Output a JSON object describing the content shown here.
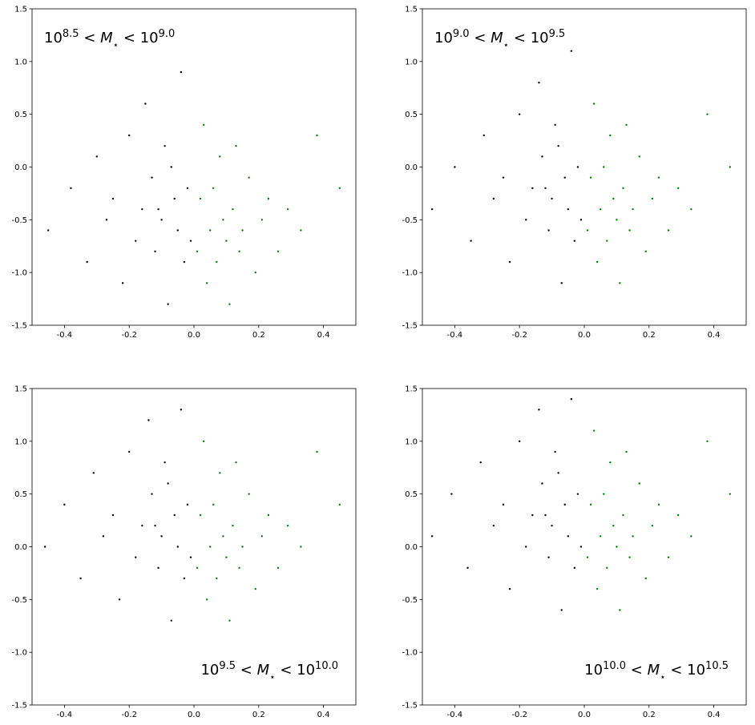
{
  "chart_data": [
    {
      "type": "scatter",
      "xlim": [
        -0.5,
        0.5
      ],
      "ylim": [
        -1.5,
        1.5
      ],
      "xticks": [
        -0.4,
        -0.2,
        {
          "value": 0,
          "label": "0.0"
        },
        0.2,
        0.4
      ],
      "yticks": [
        -1.5,
        {
          "value": -1,
          "label": "-1.0"
        },
        -0.5,
        {
          "value": 0,
          "label": "0.0"
        },
        0.5,
        {
          "value": 1,
          "label": "1.0"
        },
        1.5
      ],
      "annotation": [
        {
          "text": "10"
        },
        {
          "text": "8.5",
          "sup": true
        },
        {
          "text": " < "
        },
        {
          "text": "M",
          "italic": true
        },
        {
          "text": "⋆",
          "sub": true
        },
        {
          "text": " < "
        },
        {
          "text": "10"
        },
        {
          "text": "9.0",
          "sup": true
        }
      ],
      "annotation_position": "upper left",
      "series": [
        {
          "color": "black",
          "x": [
            -0.45,
            -0.38,
            -0.33,
            -0.3,
            -0.27,
            -0.25,
            -0.22,
            -0.2,
            -0.18,
            -0.16,
            -0.15,
            -0.13,
            -0.12,
            -0.1,
            -0.09,
            -0.08,
            -0.06,
            -0.05,
            -0.04,
            -0.03,
            -0.02,
            -0.01,
            -0.11,
            -0.07
          ],
          "values": [
            -0.6,
            -0.2,
            -0.9,
            0.1,
            -0.5,
            -0.3,
            -1.1,
            0.3,
            -0.7,
            -0.4,
            0.6,
            -0.1,
            -0.8,
            -0.5,
            0.2,
            -1.3,
            -0.3,
            -0.6,
            0.9,
            -0.9,
            -0.2,
            -0.7,
            -0.4,
            0.0
          ]
        },
        {
          "color": "green",
          "x": [
            0.01,
            0.02,
            0.03,
            0.04,
            0.05,
            0.06,
            0.07,
            0.08,
            0.09,
            0.1,
            0.11,
            0.12,
            0.13,
            0.14,
            0.15,
            0.17,
            0.19,
            0.21,
            0.23,
            0.26,
            0.29,
            0.33,
            0.38,
            0.45
          ],
          "values": [
            -0.8,
            -0.3,
            0.4,
            -1.1,
            -0.6,
            -0.2,
            -0.9,
            0.1,
            -0.5,
            -0.7,
            -1.3,
            -0.4,
            0.2,
            -0.8,
            -0.6,
            -0.1,
            -1.0,
            -0.5,
            -0.3,
            -0.8,
            -0.4,
            -0.6,
            0.3,
            -0.2
          ]
        }
      ]
    },
    {
      "type": "scatter",
      "xlim": [
        -0.5,
        0.5
      ],
      "ylim": [
        -1.5,
        1.5
      ],
      "xticks": [
        -0.4,
        -0.2,
        {
          "value": 0,
          "label": "0.0"
        },
        0.2,
        0.4
      ],
      "yticks": [
        -1.5,
        {
          "value": -1,
          "label": "-1.0"
        },
        -0.5,
        {
          "value": 0,
          "label": "0.0"
        },
        0.5,
        {
          "value": 1,
          "label": "1.0"
        },
        1.5
      ],
      "annotation": [
        {
          "text": "10"
        },
        {
          "text": "9.0",
          "sup": true
        },
        {
          "text": " < "
        },
        {
          "text": "M",
          "italic": true
        },
        {
          "text": "⋆",
          "sub": true
        },
        {
          "text": " < "
        },
        {
          "text": "10"
        },
        {
          "text": "9.5",
          "sup": true
        }
      ],
      "annotation_position": "upper left",
      "series": [
        {
          "color": "black",
          "x": [
            -0.47,
            -0.4,
            -0.35,
            -0.31,
            -0.28,
            -0.25,
            -0.23,
            -0.2,
            -0.18,
            -0.16,
            -0.14,
            -0.13,
            -0.11,
            -0.1,
            -0.09,
            -0.07,
            -0.06,
            -0.05,
            -0.04,
            -0.03,
            -0.02,
            -0.01,
            -0.12,
            -0.08
          ],
          "values": [
            -0.4,
            0.0,
            -0.7,
            0.3,
            -0.3,
            -0.1,
            -0.9,
            0.5,
            -0.5,
            -0.2,
            0.8,
            0.1,
            -0.6,
            -0.3,
            0.4,
            -1.1,
            -0.1,
            -0.4,
            1.1,
            -0.7,
            0.0,
            -0.5,
            -0.2,
            0.2
          ]
        },
        {
          "color": "green",
          "x": [
            0.01,
            0.02,
            0.03,
            0.04,
            0.05,
            0.06,
            0.07,
            0.08,
            0.09,
            0.1,
            0.11,
            0.12,
            0.13,
            0.14,
            0.15,
            0.17,
            0.19,
            0.21,
            0.23,
            0.26,
            0.29,
            0.33,
            0.38,
            0.45
          ],
          "values": [
            -0.6,
            -0.1,
            0.6,
            -0.9,
            -0.4,
            0.0,
            -0.7,
            0.3,
            -0.3,
            -0.5,
            -1.1,
            -0.2,
            0.4,
            -0.6,
            -0.4,
            0.1,
            -0.8,
            -0.3,
            -0.1,
            -0.6,
            -0.2,
            -0.4,
            0.5,
            0.0
          ]
        }
      ]
    },
    {
      "type": "scatter",
      "xlim": [
        -0.5,
        0.5
      ],
      "ylim": [
        -1.5,
        1.5
      ],
      "xticks": [
        -0.4,
        -0.2,
        {
          "value": 0,
          "label": "0.0"
        },
        0.2,
        0.4
      ],
      "yticks": [
        -1.5,
        {
          "value": -1,
          "label": "-1.0"
        },
        -0.5,
        {
          "value": 0,
          "label": "0.0"
        },
        0.5,
        {
          "value": 1,
          "label": "1.0"
        },
        1.5
      ],
      "annotation": [
        {
          "text": "10"
        },
        {
          "text": "9.5",
          "sup": true
        },
        {
          "text": " < "
        },
        {
          "text": "M",
          "italic": true
        },
        {
          "text": "⋆",
          "sub": true
        },
        {
          "text": " < "
        },
        {
          "text": "10"
        },
        {
          "text": "10.0",
          "sup": true
        }
      ],
      "annotation_position": "lower right",
      "series": [
        {
          "color": "black",
          "x": [
            -0.46,
            -0.4,
            -0.35,
            -0.31,
            -0.28,
            -0.25,
            -0.23,
            -0.2,
            -0.18,
            -0.16,
            -0.14,
            -0.13,
            -0.11,
            -0.1,
            -0.09,
            -0.07,
            -0.06,
            -0.05,
            -0.04,
            -0.03,
            -0.02,
            -0.01,
            -0.12,
            -0.08
          ],
          "values": [
            0.0,
            0.4,
            -0.3,
            0.7,
            0.1,
            0.3,
            -0.5,
            0.9,
            -0.1,
            0.2,
            1.2,
            0.5,
            -0.2,
            0.1,
            0.8,
            -0.7,
            0.3,
            0.0,
            1.3,
            -0.3,
            0.4,
            -0.1,
            0.2,
            0.6
          ]
        },
        {
          "color": "green",
          "x": [
            0.01,
            0.02,
            0.03,
            0.04,
            0.05,
            0.06,
            0.07,
            0.08,
            0.09,
            0.1,
            0.11,
            0.12,
            0.13,
            0.14,
            0.15,
            0.17,
            0.19,
            0.21,
            0.23,
            0.26,
            0.29,
            0.33,
            0.38,
            0.45
          ],
          "values": [
            -0.2,
            0.3,
            1.0,
            -0.5,
            0.0,
            0.4,
            -0.3,
            0.7,
            0.1,
            -0.1,
            -0.7,
            0.2,
            0.8,
            -0.2,
            0.0,
            0.5,
            -0.4,
            0.1,
            0.3,
            -0.2,
            0.2,
            0.0,
            0.9,
            0.4
          ]
        }
      ]
    },
    {
      "type": "scatter",
      "xlim": [
        -0.5,
        0.5
      ],
      "ylim": [
        -1.5,
        1.5
      ],
      "xticks": [
        -0.4,
        -0.2,
        {
          "value": 0,
          "label": "0.0"
        },
        0.2,
        0.4
      ],
      "yticks": [
        -1.5,
        {
          "value": -1,
          "label": "-1.0"
        },
        -0.5,
        {
          "value": 0,
          "label": "0.0"
        },
        0.5,
        {
          "value": 1,
          "label": "1.0"
        },
        1.5
      ],
      "annotation": [
        {
          "text": "10"
        },
        {
          "text": "10.0",
          "sup": true
        },
        {
          "text": " < "
        },
        {
          "text": "M",
          "italic": true
        },
        {
          "text": "⋆",
          "sub": true
        },
        {
          "text": " < "
        },
        {
          "text": "10"
        },
        {
          "text": "10.5",
          "sup": true
        }
      ],
      "annotation_position": "lower right",
      "series": [
        {
          "color": "black",
          "x": [
            -0.47,
            -0.41,
            -0.36,
            -0.32,
            -0.28,
            -0.25,
            -0.23,
            -0.2,
            -0.18,
            -0.16,
            -0.14,
            -0.13,
            -0.11,
            -0.1,
            -0.09,
            -0.07,
            -0.06,
            -0.05,
            -0.04,
            -0.03,
            -0.02,
            -0.01,
            -0.12,
            -0.08
          ],
          "values": [
            0.1,
            0.5,
            -0.2,
            0.8,
            0.2,
            0.4,
            -0.4,
            1.0,
            0.0,
            0.3,
            1.3,
            0.6,
            -0.1,
            0.2,
            0.9,
            -0.6,
            0.4,
            0.1,
            1.4,
            -0.2,
            0.5,
            0.0,
            0.3,
            0.7
          ]
        },
        {
          "color": "green",
          "x": [
            0.01,
            0.02,
            0.03,
            0.04,
            0.05,
            0.06,
            0.07,
            0.08,
            0.09,
            0.1,
            0.11,
            0.12,
            0.13,
            0.14,
            0.15,
            0.17,
            0.19,
            0.21,
            0.23,
            0.26,
            0.29,
            0.33,
            0.38,
            0.45
          ],
          "values": [
            -0.1,
            0.4,
            1.1,
            -0.4,
            0.1,
            0.5,
            -0.2,
            0.8,
            0.2,
            0.0,
            -0.6,
            0.3,
            0.9,
            -0.1,
            0.1,
            0.6,
            -0.3,
            0.2,
            0.4,
            -0.1,
            0.3,
            0.1,
            1.0,
            0.5
          ]
        }
      ]
    }
  ]
}
